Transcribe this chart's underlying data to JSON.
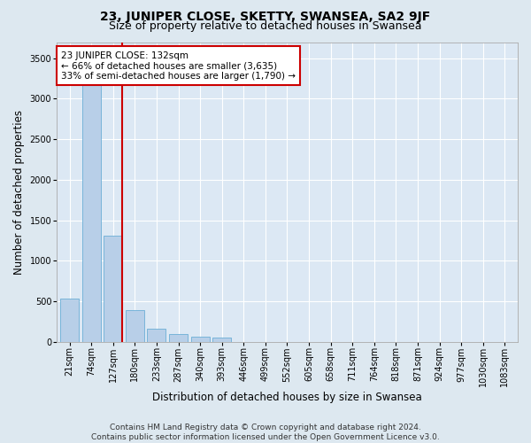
{
  "title": "23, JUNIPER CLOSE, SKETTY, SWANSEA, SA2 9JF",
  "subtitle": "Size of property relative to detached houses in Swansea",
  "xlabel": "Distribution of detached houses by size in Swansea",
  "ylabel": "Number of detached properties",
  "categories": [
    "21sqm",
    "74sqm",
    "127sqm",
    "180sqm",
    "233sqm",
    "287sqm",
    "340sqm",
    "393sqm",
    "446sqm",
    "499sqm",
    "552sqm",
    "605sqm",
    "658sqm",
    "711sqm",
    "764sqm",
    "818sqm",
    "871sqm",
    "924sqm",
    "977sqm",
    "1030sqm",
    "1083sqm"
  ],
  "values": [
    530,
    3400,
    1310,
    390,
    155,
    90,
    60,
    55,
    0,
    0,
    0,
    0,
    0,
    0,
    0,
    0,
    0,
    0,
    0,
    0,
    0
  ],
  "bar_color": "#b8cfe8",
  "bar_edge_color": "#6baed6",
  "highlight_index": 2,
  "highlight_color": "#cc0000",
  "annotation_text": "23 JUNIPER CLOSE: 132sqm\n← 66% of detached houses are smaller (3,635)\n33% of semi-detached houses are larger (1,790) →",
  "annotation_box_color": "#ffffff",
  "annotation_box_edge_color": "#cc0000",
  "ylim": [
    0,
    3700
  ],
  "yticks": [
    0,
    500,
    1000,
    1500,
    2000,
    2500,
    3000,
    3500
  ],
  "footer_line1": "Contains HM Land Registry data © Crown copyright and database right 2024.",
  "footer_line2": "Contains public sector information licensed under the Open Government Licence v3.0.",
  "bg_color": "#dde8f0",
  "plot_bg_color": "#dce8f4",
  "grid_color": "#ffffff",
  "title_fontsize": 10,
  "subtitle_fontsize": 9,
  "axis_label_fontsize": 8.5,
  "tick_fontsize": 7,
  "annotation_fontsize": 7.5,
  "footer_fontsize": 6.5
}
